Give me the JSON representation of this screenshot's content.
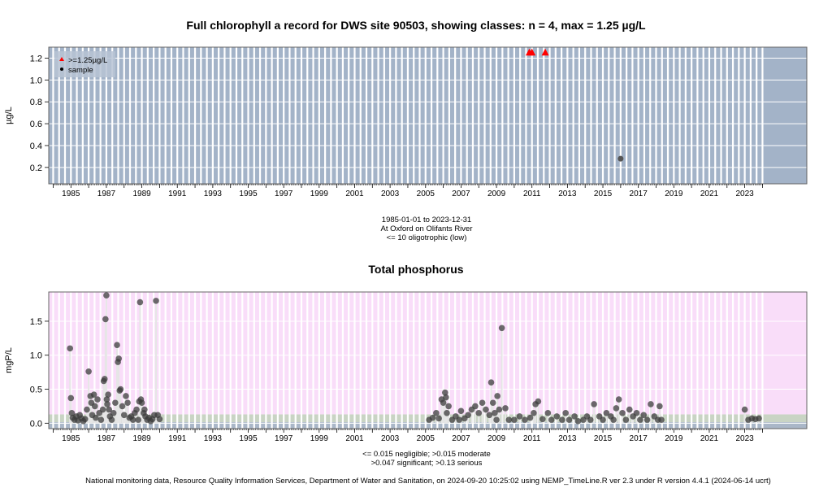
{
  "chart_data": [
    {
      "type": "scatter",
      "title": "Full chlorophyll a record for DWS site 90503, showing classes: n = 4, max = 1.25 µg/L",
      "ylabel": "µg/L",
      "xlim": [
        1983.75,
        2026.5
      ],
      "ylim": [
        0.05,
        1.3
      ],
      "x_ticks": [
        1985,
        1987,
        1989,
        1991,
        1993,
        1995,
        1997,
        1999,
        2001,
        2003,
        2005,
        2007,
        2009,
        2011,
        2013,
        2015,
        2017,
        2019,
        2021,
        2023
      ],
      "y_ticks": [
        0.2,
        0.4,
        0.6,
        0.8,
        1.0,
        1.2
      ],
      "y_tick_labels": [
        "0.2",
        "0.4",
        "0.6",
        "0.8",
        "1.0",
        "1.2"
      ],
      "grid": true,
      "background_color": "#a3b3c8",
      "legend": {
        "position": "top-left",
        "entries": [
          {
            "label": ">=1.25µg/L",
            "marker": "triangle",
            "color": "#ff0000"
          },
          {
            "label": "sample",
            "marker": "circle",
            "color": "#000000"
          }
        ]
      },
      "series": [
        {
          "name": ">=1.25µg/L",
          "color": "#ff0000",
          "marker": "triangle",
          "x": [
            2010.85,
            2011.0,
            2011.75
          ],
          "y": [
            1.25,
            1.25,
            1.25
          ]
        },
        {
          "name": "sample",
          "color": "#555555",
          "marker": "circle",
          "x": [
            2016.0
          ],
          "y": [
            0.28
          ]
        }
      ],
      "caption_lines": [
        "1985-01-01 to 2023-12-31",
        "At Oxford on Olifants River",
        "<= 10 oligotrophic (low)"
      ]
    },
    {
      "type": "scatter",
      "title": "Total phosphorus",
      "ylabel": "mgP/L",
      "xlim": [
        1983.75,
        2026.5
      ],
      "ylim": [
        -0.08,
        1.93
      ],
      "x_ticks": [
        1985,
        1987,
        1989,
        1991,
        1993,
        1995,
        1997,
        1999,
        2001,
        2003,
        2005,
        2007,
        2009,
        2011,
        2013,
        2015,
        2017,
        2019,
        2021,
        2023
      ],
      "y_ticks": [
        0.0,
        0.5,
        1.0,
        1.5
      ],
      "y_tick_labels": [
        "0.0",
        "0.5",
        "1.0",
        "1.5"
      ],
      "grid": true,
      "bands": [
        {
          "from": -0.08,
          "to": 0.015,
          "color": "#aab7c8",
          "label": "negligible"
        },
        {
          "from": 0.015,
          "to": 0.13,
          "color": "#c9d4c4",
          "label": "moderate/significant"
        },
        {
          "from": 0.13,
          "to": 1.93,
          "color": "#f9ddf9",
          "label": "serious"
        }
      ],
      "series": [
        {
          "name": "Total phosphorus",
          "color": "#3c3c3c",
          "x": [
            1984.95,
            1985.0,
            1985.05,
            1985.1,
            1985.2,
            1985.3,
            1985.4,
            1985.5,
            1985.6,
            1985.7,
            1985.8,
            1985.9,
            1986.0,
            1986.1,
            1986.15,
            1986.2,
            1986.3,
            1986.35,
            1986.4,
            1986.5,
            1986.6,
            1986.7,
            1986.8,
            1986.85,
            1986.9,
            1986.95,
            1987.0,
            1987.02,
            1987.05,
            1987.1,
            1987.15,
            1987.2,
            1987.3,
            1987.4,
            1987.5,
            1987.6,
            1987.65,
            1987.7,
            1987.75,
            1987.8,
            1987.9,
            1988.0,
            1988.1,
            1988.2,
            1988.3,
            1988.4,
            1988.5,
            1988.6,
            1988.7,
            1988.8,
            1988.85,
            1988.9,
            1988.95,
            1989.0,
            1989.1,
            1989.15,
            1989.2,
            1989.3,
            1989.4,
            1989.5,
            1989.6,
            1989.7,
            1989.8,
            1989.9,
            1990.0,
            2005.2,
            2005.4,
            2005.6,
            2005.75,
            2005.9,
            2006.0,
            2006.1,
            2006.15,
            2006.2,
            2006.3,
            2006.5,
            2006.7,
            2006.9,
            2007.0,
            2007.2,
            2007.4,
            2007.6,
            2007.8,
            2008.0,
            2008.2,
            2008.4,
            2008.6,
            2008.7,
            2008.8,
            2008.9,
            2009.0,
            2009.05,
            2009.15,
            2009.3,
            2009.5,
            2009.7,
            2010.0,
            2010.3,
            2010.6,
            2010.9,
            2011.1,
            2011.2,
            2011.35,
            2011.6,
            2011.9,
            2012.1,
            2012.4,
            2012.7,
            2012.9,
            2013.1,
            2013.4,
            2013.6,
            2013.9,
            2014.1,
            2014.3,
            2014.5,
            2014.8,
            2015.0,
            2015.2,
            2015.45,
            2015.6,
            2015.75,
            2015.9,
            2016.1,
            2016.3,
            2016.5,
            2016.7,
            2016.9,
            2017.1,
            2017.3,
            2017.5,
            2017.7,
            2017.9,
            2018.1,
            2018.2,
            2018.3,
            2023.0,
            2023.2,
            2023.4,
            2023.6,
            2023.8
          ],
          "y": [
            1.1,
            0.37,
            0.15,
            0.08,
            0.05,
            0.1,
            0.04,
            0.12,
            0.07,
            0.03,
            0.06,
            0.2,
            0.76,
            0.4,
            0.3,
            0.12,
            0.42,
            0.25,
            0.08,
            0.35,
            0.15,
            0.05,
            0.2,
            0.62,
            0.65,
            1.53,
            1.88,
            0.35,
            0.28,
            0.42,
            0.2,
            0.1,
            0.05,
            0.15,
            0.3,
            1.15,
            0.9,
            0.95,
            0.48,
            0.5,
            0.25,
            0.12,
            0.4,
            0.3,
            0.08,
            0.1,
            0.05,
            0.15,
            0.2,
            0.05,
            0.32,
            1.78,
            0.35,
            0.3,
            0.15,
            0.2,
            0.1,
            0.05,
            0.08,
            0.03,
            0.06,
            0.12,
            1.8,
            0.12,
            0.06,
            0.05,
            0.08,
            0.15,
            0.07,
            0.35,
            0.3,
            0.45,
            0.38,
            0.15,
            0.25,
            0.05,
            0.1,
            0.05,
            0.18,
            0.07,
            0.12,
            0.2,
            0.25,
            0.15,
            0.3,
            0.2,
            0.12,
            0.6,
            0.3,
            0.15,
            0.05,
            0.4,
            0.2,
            1.4,
            0.22,
            0.05,
            0.05,
            0.1,
            0.05,
            0.08,
            0.15,
            0.28,
            0.32,
            0.06,
            0.15,
            0.05,
            0.1,
            0.05,
            0.15,
            0.05,
            0.1,
            0.03,
            0.05,
            0.1,
            0.05,
            0.28,
            0.1,
            0.05,
            0.15,
            0.1,
            0.05,
            0.22,
            0.35,
            0.15,
            0.05,
            0.2,
            0.1,
            0.15,
            0.05,
            0.12,
            0.05,
            0.28,
            0.1,
            0.05,
            0.25,
            0.05,
            0.2,
            0.05,
            0.07,
            0.06,
            0.07
          ]
        }
      ],
      "caption_lines": [
        "<= 0.015 negligible; >0.015 moderate",
        ">0.047 significant; >0.13 serious"
      ]
    }
  ],
  "footer": "National monitoring data, Resource Quality Information Services, Department of Water and Sanitation, on 2024-09-20 10:25:02 using NEMP_TimeLine.R ver 2.3 under R version 4.4.1 (2024-06-14 ucrt)"
}
